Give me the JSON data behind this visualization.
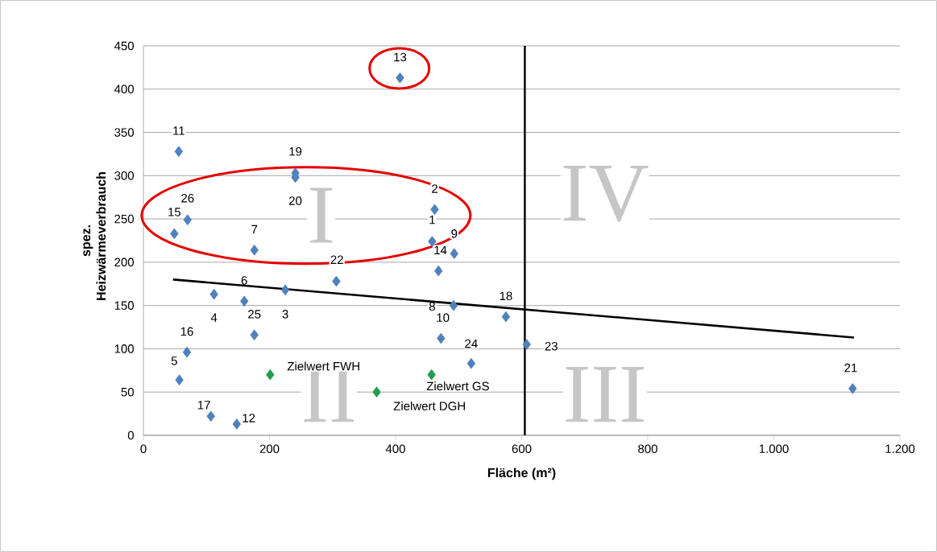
{
  "chart_data": {
    "type": "scatter",
    "xlabel": "Fläche (m²)",
    "ylabel": "spez. Heizwärmeverbrauch",
    "xlim": [
      0,
      1200
    ],
    "xticks": [
      0,
      200,
      400,
      600,
      800,
      {
        "value": 1000,
        "label": "1.000"
      },
      {
        "value": 1200,
        "label": "1.200"
      }
    ],
    "ylim": [
      0,
      450
    ],
    "yticks": [
      0,
      50,
      100,
      150,
      200,
      250,
      300,
      350,
      400,
      450
    ],
    "grid": "y",
    "marker": "diamond",
    "series": [
      {
        "color": "#4f81bd",
        "x": [
          458,
          462,
          225,
          112,
          57,
          160,
          176,
          492,
          493,
          472,
          56,
          148,
          407,
          468,
          49,
          69,
          107,
          575,
          241,
          241,
          1125,
          306,
          608,
          520,
          176,
          70
        ],
        "values": [
          224,
          261,
          168,
          163,
          64,
          155,
          214,
          150,
          210,
          112,
          328,
          13,
          413,
          190,
          233,
          96,
          22,
          137,
          303,
          298,
          54,
          178,
          105,
          83,
          116,
          249
        ]
      },
      {
        "color": "#1e9e50",
        "x": [
          201,
          370,
          457
        ],
        "values": [
          70,
          50,
          70
        ]
      },
      {
        "type": "line",
        "marker": "none",
        "color": "#000000",
        "x": [
          47,
          1127
        ],
        "values": [
          180,
          113
        ]
      }
    ],
    "ref_lines": [
      {
        "axis": "x",
        "value": 605,
        "color": "#000000"
      }
    ],
    "annotations": [
      {
        "text": "1",
        "x": 458,
        "y": 224
      },
      {
        "text": "2",
        "x": 462,
        "y": 261
      },
      {
        "text": "3",
        "x": 225,
        "y": 168
      },
      {
        "text": "4",
        "x": 112,
        "y": 163
      },
      {
        "text": "5",
        "x": 57,
        "y": 64
      },
      {
        "text": "6",
        "x": 160,
        "y": 155
      },
      {
        "text": "7",
        "x": 176,
        "y": 214
      },
      {
        "text": "8",
        "x": 492,
        "y": 150
      },
      {
        "text": "9",
        "x": 493,
        "y": 210
      },
      {
        "text": "10",
        "x": 472,
        "y": 112
      },
      {
        "text": "11",
        "x": 56,
        "y": 328
      },
      {
        "text": "12",
        "x": 148,
        "y": 13
      },
      {
        "text": "13",
        "x": 407,
        "y": 413
      },
      {
        "text": "14",
        "x": 468,
        "y": 190
      },
      {
        "text": "15",
        "x": 49,
        "y": 233
      },
      {
        "text": "16",
        "x": 69,
        "y": 96
      },
      {
        "text": "17",
        "x": 107,
        "y": 22
      },
      {
        "text": "18",
        "x": 575,
        "y": 137
      },
      {
        "text": "19",
        "x": 241,
        "y": 303
      },
      {
        "text": "20",
        "x": 241,
        "y": 298
      },
      {
        "text": "21",
        "x": 1125,
        "y": 54
      },
      {
        "text": "22",
        "x": 306,
        "y": 178
      },
      {
        "text": "23",
        "x": 608,
        "y": 105
      },
      {
        "text": "24",
        "x": 520,
        "y": 83
      },
      {
        "text": "25",
        "x": 176,
        "y": 116
      },
      {
        "text": "26",
        "x": 70,
        "y": 249
      },
      {
        "text": "Zielwert FWH",
        "x": 201,
        "y": 70
      },
      {
        "text": "Zielwert DGH",
        "x": 370,
        "y": 50
      },
      {
        "text": "Zielwert GS",
        "x": 457,
        "y": 70
      },
      "I",
      "II",
      "III",
      "IV"
    ]
  }
}
